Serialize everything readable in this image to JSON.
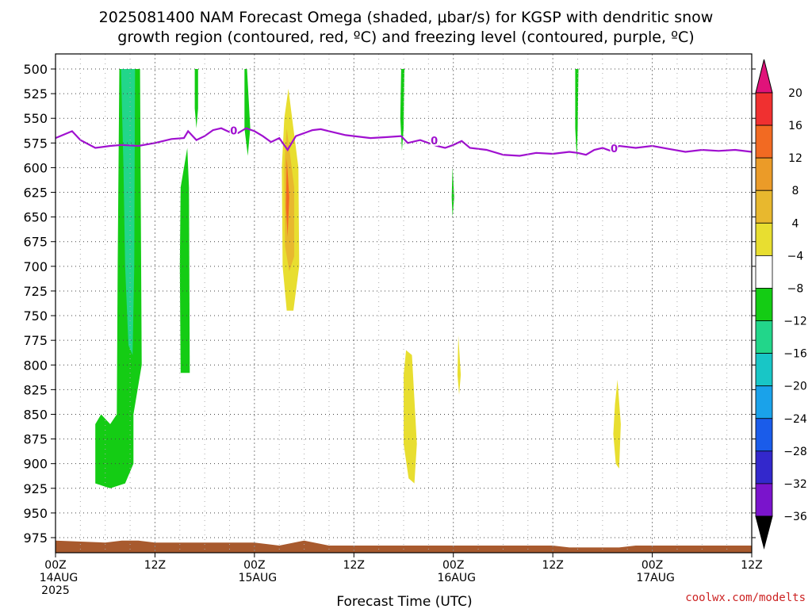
{
  "chart_data": {
    "type": "heatmap",
    "title_lines": [
      "2025081400 NAM Forecast Omega (shaded, μbar/s) for KGSP with dendritic snow",
      "growth region (contoured, red, ºC) and freezing level (contoured, purple, ºC)"
    ],
    "xlabel": "Forecast Time (UTC)",
    "credit": "coolwx.com/modelts",
    "xlim": [
      0,
      84
    ],
    "ylim": [
      500,
      1000
    ],
    "y_ticks": [
      500,
      525,
      550,
      575,
      600,
      625,
      650,
      675,
      700,
      725,
      750,
      775,
      800,
      825,
      850,
      875,
      900,
      925,
      950,
      975
    ],
    "x_ticks": [
      {
        "h": 0,
        "line1": "00Z",
        "line2": "14AUG",
        "line3": "2025"
      },
      {
        "h": 12,
        "line1": "12Z",
        "line2": "",
        "line3": ""
      },
      {
        "h": 24,
        "line1": "00Z",
        "line2": "15AUG",
        "line3": ""
      },
      {
        "h": 36,
        "line1": "12Z",
        "line2": "",
        "line3": ""
      },
      {
        "h": 48,
        "line1": "00Z",
        "line2": "16AUG",
        "line3": ""
      },
      {
        "h": 60,
        "line1": "12Z",
        "line2": "",
        "line3": ""
      },
      {
        "h": 72,
        "line1": "00Z",
        "line2": "17AUG",
        "line3": ""
      },
      {
        "h": 84,
        "line1": "12Z",
        "line2": "",
        "line3": ""
      }
    ],
    "colorbar": {
      "levels": [
        "20",
        "16",
        "12",
        "8",
        "4",
        "−4",
        "−8",
        "−12",
        "−16",
        "−20",
        "−24",
        "−28",
        "−32",
        "−36"
      ],
      "colors": [
        "#e0137a",
        "#f03030",
        "#f26a22",
        "#eb9b28",
        "#e8b82e",
        "#e8de30",
        "#ffffff",
        "#14cc14",
        "#22d68a",
        "#18c6c6",
        "#1aa2ea",
        "#1a5cea",
        "#3328cc",
        "#7a14cc",
        "#a31ac2",
        "#a8a8a8",
        "#000000"
      ]
    },
    "omega_regions": [
      {
        "value_class": "-8",
        "color": "#14cc14",
        "polygon": [
          [
            7.7,
            500
          ],
          [
            10.2,
            500
          ],
          [
            10.4,
            800
          ],
          [
            9.4,
            850
          ],
          [
            9.4,
            900
          ],
          [
            8.4,
            920
          ],
          [
            6.6,
            925
          ],
          [
            4.8,
            920
          ],
          [
            4.8,
            860
          ],
          [
            5.5,
            850
          ],
          [
            6.6,
            860
          ],
          [
            7.4,
            850
          ],
          [
            7.5,
            700
          ]
        ]
      },
      {
        "value_class": "-12",
        "color": "#22d68a",
        "polygon": [
          [
            7.9,
            500
          ],
          [
            9.6,
            500
          ],
          [
            9.5,
            700
          ],
          [
            9.3,
            790
          ],
          [
            8.8,
            780
          ],
          [
            8.4,
            700
          ],
          [
            8.2,
            600
          ]
        ]
      },
      {
        "value_class": "-8",
        "color": "#14cc14",
        "polygon": [
          [
            15.1,
            620
          ],
          [
            15.9,
            580
          ],
          [
            16.1,
            620
          ],
          [
            16.2,
            808
          ],
          [
            15.1,
            808
          ],
          [
            15.0,
            700
          ]
        ]
      },
      {
        "value_class": "-8",
        "color": "#14cc14",
        "polygon": [
          [
            16.8,
            500
          ],
          [
            17.2,
            500
          ],
          [
            17.2,
            540
          ],
          [
            17.0,
            560
          ],
          [
            16.8,
            540
          ]
        ]
      },
      {
        "value_class": "-8",
        "color": "#14cc14",
        "polygon": [
          [
            22.8,
            500
          ],
          [
            23.1,
            500
          ],
          [
            23.5,
            560
          ],
          [
            23.2,
            588
          ],
          [
            22.8,
            560
          ]
        ]
      },
      {
        "value_class": "-8",
        "color": "#14cc14",
        "polygon": [
          [
            41.7,
            500
          ],
          [
            42.1,
            500
          ],
          [
            42.0,
            560
          ],
          [
            41.8,
            583
          ],
          [
            41.6,
            550
          ]
        ]
      },
      {
        "value_class": "-8",
        "color": "#14cc14",
        "polygon": [
          [
            47.9,
            600
          ],
          [
            48.1,
            630
          ],
          [
            47.9,
            650
          ],
          [
            47.8,
            630
          ]
        ]
      },
      {
        "value_class": "-8",
        "color": "#14cc14",
        "polygon": [
          [
            62.7,
            500
          ],
          [
            63.1,
            500
          ],
          [
            63.0,
            560
          ],
          [
            62.9,
            592
          ],
          [
            62.7,
            560
          ]
        ]
      },
      {
        "value_class": "4",
        "color": "#e8de30",
        "polygon": [
          [
            28.1,
            520
          ],
          [
            29.3,
            600
          ],
          [
            29.4,
            700
          ],
          [
            28.7,
            745
          ],
          [
            27.9,
            745
          ],
          [
            27.4,
            700
          ],
          [
            27.3,
            600
          ],
          [
            27.6,
            550
          ]
        ]
      },
      {
        "value_class": "8",
        "color": "#e8b82e",
        "polygon": [
          [
            27.9,
            560
          ],
          [
            28.8,
            620
          ],
          [
            28.8,
            690
          ],
          [
            28.2,
            705
          ],
          [
            27.7,
            680
          ],
          [
            27.6,
            600
          ]
        ]
      },
      {
        "value_class": "12",
        "color": "#f26a22",
        "polygon": [
          [
            27.9,
            590
          ],
          [
            28.2,
            630
          ],
          [
            28.0,
            670
          ],
          [
            27.8,
            640
          ]
        ]
      },
      {
        "value_class": "4",
        "color": "#e8de30",
        "polygon": [
          [
            42.3,
            785
          ],
          [
            43.0,
            790
          ],
          [
            43.6,
            880
          ],
          [
            43.3,
            920
          ],
          [
            42.6,
            915
          ],
          [
            42.0,
            880
          ],
          [
            42.0,
            810
          ]
        ]
      },
      {
        "value_class": "4",
        "color": "#e8de30",
        "polygon": [
          [
            48.6,
            770
          ],
          [
            48.9,
            810
          ],
          [
            48.7,
            830
          ],
          [
            48.5,
            810
          ]
        ]
      },
      {
        "value_class": "4",
        "color": "#e8de30",
        "polygon": [
          [
            67.8,
            815
          ],
          [
            68.2,
            860
          ],
          [
            68.0,
            905
          ],
          [
            67.6,
            900
          ],
          [
            67.3,
            870
          ],
          [
            67.5,
            840
          ]
        ]
      }
    ],
    "freezing_level_0C": {
      "color": "#a010d0",
      "label": "0",
      "x": [
        0,
        2,
        3,
        4.8,
        6.6,
        8,
        10,
        12,
        14,
        15.5,
        16,
        17,
        18,
        19,
        20,
        21,
        22,
        23,
        24,
        25,
        26,
        27,
        28,
        29,
        30,
        31,
        32,
        33,
        34,
        35,
        36,
        38,
        40,
        41.7,
        42.5,
        44,
        46,
        47,
        48,
        49,
        50,
        52,
        54,
        56,
        58,
        60,
        62,
        63,
        64,
        65,
        66,
        67,
        68,
        70,
        72,
        74,
        76,
        78,
        80,
        82,
        84
      ],
      "y": [
        570,
        563,
        572,
        580,
        578,
        577,
        578,
        575,
        571,
        570,
        563,
        572,
        568,
        562,
        560,
        564,
        565,
        560,
        563,
        568,
        574,
        570,
        582,
        568,
        565,
        562,
        561,
        563,
        565,
        567,
        568,
        570,
        569,
        568,
        575,
        572,
        578,
        580,
        577,
        573,
        580,
        582,
        587,
        588,
        585,
        586,
        584,
        585,
        587,
        582,
        580,
        583,
        578,
        580,
        578,
        581,
        584,
        582,
        583,
        582,
        584
      ]
    },
    "terrain": {
      "color": "#a85a2e",
      "surface_x": [
        0,
        6,
        8,
        10,
        12,
        18,
        24,
        27,
        30,
        33,
        35,
        48,
        60,
        62,
        68,
        70,
        84
      ],
      "surface_p": [
        978,
        980,
        978,
        978,
        980,
        980,
        980,
        983,
        978,
        983,
        983,
        983,
        983,
        985,
        985,
        983,
        983
      ]
    },
    "grid": true
  }
}
